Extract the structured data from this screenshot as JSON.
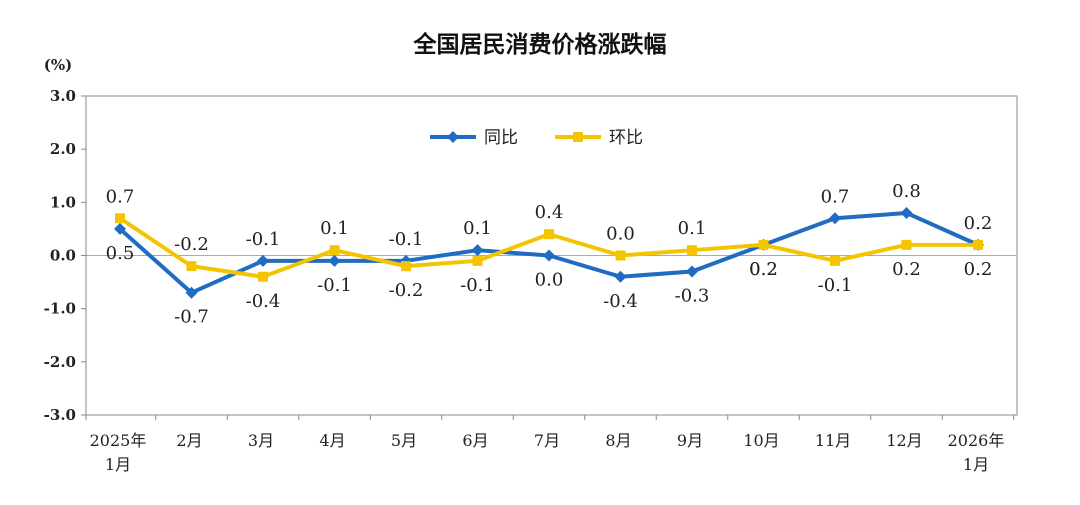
{
  "chart_data": {
    "type": "line",
    "title": "全国居民消费价格涨跌幅",
    "unit_label": "(%)",
    "ylim": [
      -3.0,
      3.0
    ],
    "y_ticks": [
      "3.0",
      "2.0",
      "1.0",
      "0.0",
      "-1.0",
      "-2.0",
      "-3.0"
    ],
    "categories": [
      [
        "2025年",
        "1月"
      ],
      [
        "2月"
      ],
      [
        "3月"
      ],
      [
        "4月"
      ],
      [
        "5月"
      ],
      [
        "6月"
      ],
      [
        "7月"
      ],
      [
        "8月"
      ],
      [
        "9月"
      ],
      [
        "10月"
      ],
      [
        "11月"
      ],
      [
        "12月"
      ],
      [
        "2026年",
        "1月"
      ]
    ],
    "grid": false,
    "legend_position": "top-center",
    "series": [
      {
        "name": "同比",
        "color": "#1f6cc2",
        "marker": "diamond",
        "values": [
          0.5,
          -0.7,
          -0.1,
          -0.1,
          -0.1,
          0.1,
          0.0,
          -0.4,
          -0.3,
          0.2,
          0.7,
          0.8,
          0.2
        ],
        "labels": [
          "0.5",
          "-0.7",
          "-0.1",
          "-0.1",
          "-0.1",
          "0.1",
          "0.0",
          "-0.4",
          "-0.3",
          "0.2",
          "0.7",
          "0.8",
          "0.2"
        ],
        "label_side": [
          "below",
          "below",
          "above",
          "below",
          "above",
          "above",
          "below",
          "below",
          "below",
          "below",
          "above",
          "above",
          "above"
        ]
      },
      {
        "name": "环比",
        "color": "#f5c400",
        "marker": "square",
        "values": [
          0.7,
          -0.2,
          -0.4,
          0.1,
          -0.2,
          -0.1,
          0.4,
          0.0,
          0.1,
          0.2,
          -0.1,
          0.2,
          0.2
        ],
        "labels": [
          "0.7",
          "-0.2",
          "-0.4",
          "0.1",
          "-0.2",
          "-0.1",
          "0.4",
          "0.0",
          "0.1",
          "0.2",
          "-0.1",
          "0.2",
          "0.2"
        ],
        "label_side": [
          "above",
          "above",
          "below",
          "above",
          "below",
          "below",
          "above",
          "above",
          "above",
          "below",
          "below",
          "below",
          "below"
        ]
      }
    ]
  }
}
